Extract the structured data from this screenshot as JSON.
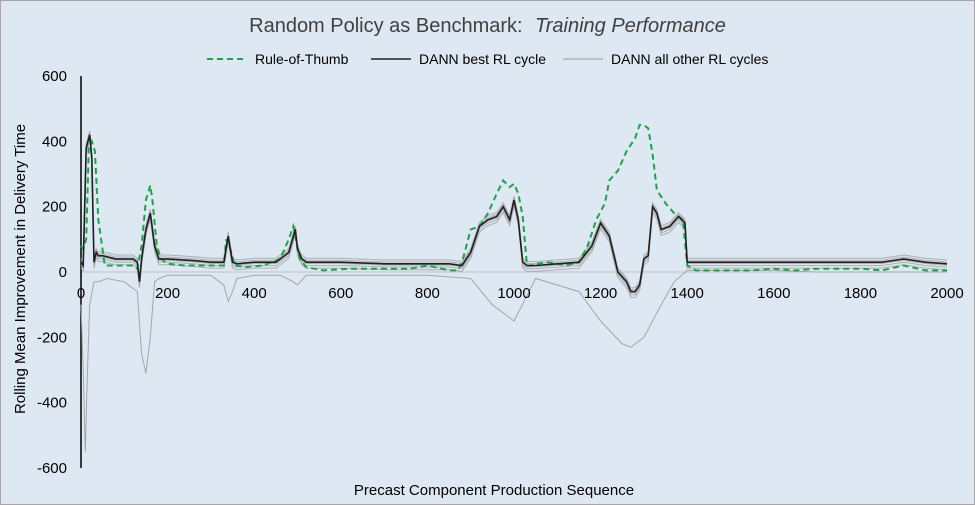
{
  "chart_data": {
    "type": "line",
    "title": "Random Policy as Benchmark:",
    "subtitle": "Training Performance",
    "xlabel": "Precast Component Production Sequence",
    "ylabel": "Rolling Mean Improvement in Delivery Time",
    "xlim": [
      0,
      2000
    ],
    "ylim": [
      -600,
      600
    ],
    "x_ticks": [
      "0",
      "200",
      "400",
      "600",
      "800",
      "1000",
      "1200",
      "1400",
      "1600",
      "1800",
      "2000"
    ],
    "y_ticks": [
      "600",
      "400",
      "200",
      "0",
      "-200",
      "-400",
      "-600"
    ],
    "grid": "horizontal zero line only",
    "legend_position": "top-center",
    "colors": {
      "rule": "#1ea34a",
      "best": "#1f1f1f",
      "other": "#a6a6a6",
      "other_dark": "#8c8c8c",
      "background": "#dde8f3"
    },
    "series": [
      {
        "name": "Rule-of-Thumb",
        "style": "dashed",
        "color": "#1ea34a",
        "x": [
          0,
          5,
          12,
          18,
          25,
          32,
          40,
          55,
          80,
          120,
          130,
          140,
          150,
          160,
          165,
          175,
          185,
          200,
          240,
          300,
          330,
          335,
          345,
          355,
          380,
          420,
          460,
          480,
          490,
          495,
          505,
          520,
          560,
          620,
          700,
          760,
          800,
          850,
          870,
          880,
          890,
          900,
          920,
          940,
          960,
          975,
          990,
          1000,
          1010,
          1020,
          1030,
          1040,
          1050,
          1080,
          1120,
          1150,
          1170,
          1190,
          1210,
          1220,
          1240,
          1260,
          1280,
          1290,
          1300,
          1310,
          1320,
          1330,
          1350,
          1370,
          1390,
          1400,
          1420,
          1500,
          1550,
          1600,
          1650,
          1700,
          1800,
          1850,
          1900,
          1950,
          2000
        ],
        "y": [
          80,
          70,
          100,
          380,
          400,
          370,
          160,
          20,
          20,
          20,
          10,
          80,
          220,
          265,
          220,
          80,
          40,
          25,
          20,
          20,
          20,
          100,
          70,
          20,
          15,
          20,
          40,
          100,
          140,
          110,
          40,
          15,
          5,
          10,
          10,
          10,
          20,
          5,
          5,
          30,
          80,
          130,
          140,
          180,
          240,
          280,
          260,
          270,
          240,
          170,
          20,
          20,
          25,
          30,
          20,
          30,
          80,
          160,
          210,
          280,
          310,
          370,
          410,
          450,
          450,
          440,
          360,
          250,
          210,
          180,
          160,
          20,
          5,
          5,
          5,
          10,
          5,
          10,
          10,
          5,
          20,
          5,
          5
        ]
      },
      {
        "name": "DANN best RL cycle",
        "style": "solid",
        "color": "#1f1f1f",
        "x": [
          0,
          5,
          12,
          20,
          25,
          30,
          35,
          40,
          50,
          80,
          120,
          130,
          135,
          140,
          150,
          160,
          170,
          180,
          200,
          260,
          300,
          330,
          340,
          350,
          360,
          400,
          450,
          480,
          495,
          500,
          510,
          520,
          600,
          700,
          800,
          850,
          880,
          900,
          920,
          940,
          960,
          975,
          990,
          1000,
          1010,
          1020,
          1030,
          1050,
          1100,
          1150,
          1180,
          1200,
          1220,
          1240,
          1260,
          1270,
          1280,
          1290,
          1300,
          1310,
          1320,
          1330,
          1340,
          1360,
          1380,
          1395,
          1400,
          1410,
          1500,
          1600,
          1700,
          1800,
          1850,
          1900,
          1950,
          2000
        ],
        "y": [
          30,
          20,
          380,
          420,
          350,
          30,
          60,
          50,
          50,
          40,
          40,
          30,
          -30,
          40,
          130,
          180,
          80,
          40,
          40,
          35,
          30,
          30,
          110,
          30,
          25,
          30,
          30,
          60,
          130,
          70,
          40,
          30,
          30,
          25,
          25,
          25,
          20,
          60,
          140,
          160,
          170,
          200,
          160,
          220,
          160,
          30,
          20,
          20,
          25,
          30,
          80,
          150,
          110,
          0,
          -30,
          -60,
          -60,
          -40,
          40,
          50,
          200,
          180,
          130,
          140,
          170,
          150,
          30,
          30,
          30,
          30,
          30,
          30,
          30,
          40,
          30,
          25
        ]
      },
      {
        "name": "DANN all other RL cycles",
        "style": "solid",
        "color": "#a6a6a6",
        "x": [
          0,
          5,
          10,
          15,
          20,
          30,
          40,
          60,
          100,
          130,
          140,
          150,
          160,
          170,
          180,
          200,
          300,
          330,
          340,
          350,
          360,
          400,
          460,
          490,
          500,
          520,
          600,
          800,
          900,
          950,
          1000,
          1050,
          1150,
          1200,
          1250,
          1270,
          1300,
          1320,
          1340,
          1370,
          1400,
          1500,
          1600,
          1700,
          1800,
          1900,
          2000
        ],
        "y": [
          -100,
          -300,
          -550,
          -300,
          -100,
          -30,
          -30,
          -20,
          -30,
          -60,
          -250,
          -310,
          -200,
          -30,
          -20,
          -10,
          -10,
          -40,
          -90,
          -60,
          -20,
          -10,
          -10,
          -30,
          -40,
          -10,
          -10,
          -10,
          -20,
          -100,
          -150,
          -20,
          -60,
          -150,
          -220,
          -230,
          -200,
          -150,
          -100,
          -30,
          5,
          5,
          5,
          0,
          0,
          0,
          0
        ]
      }
    ]
  }
}
